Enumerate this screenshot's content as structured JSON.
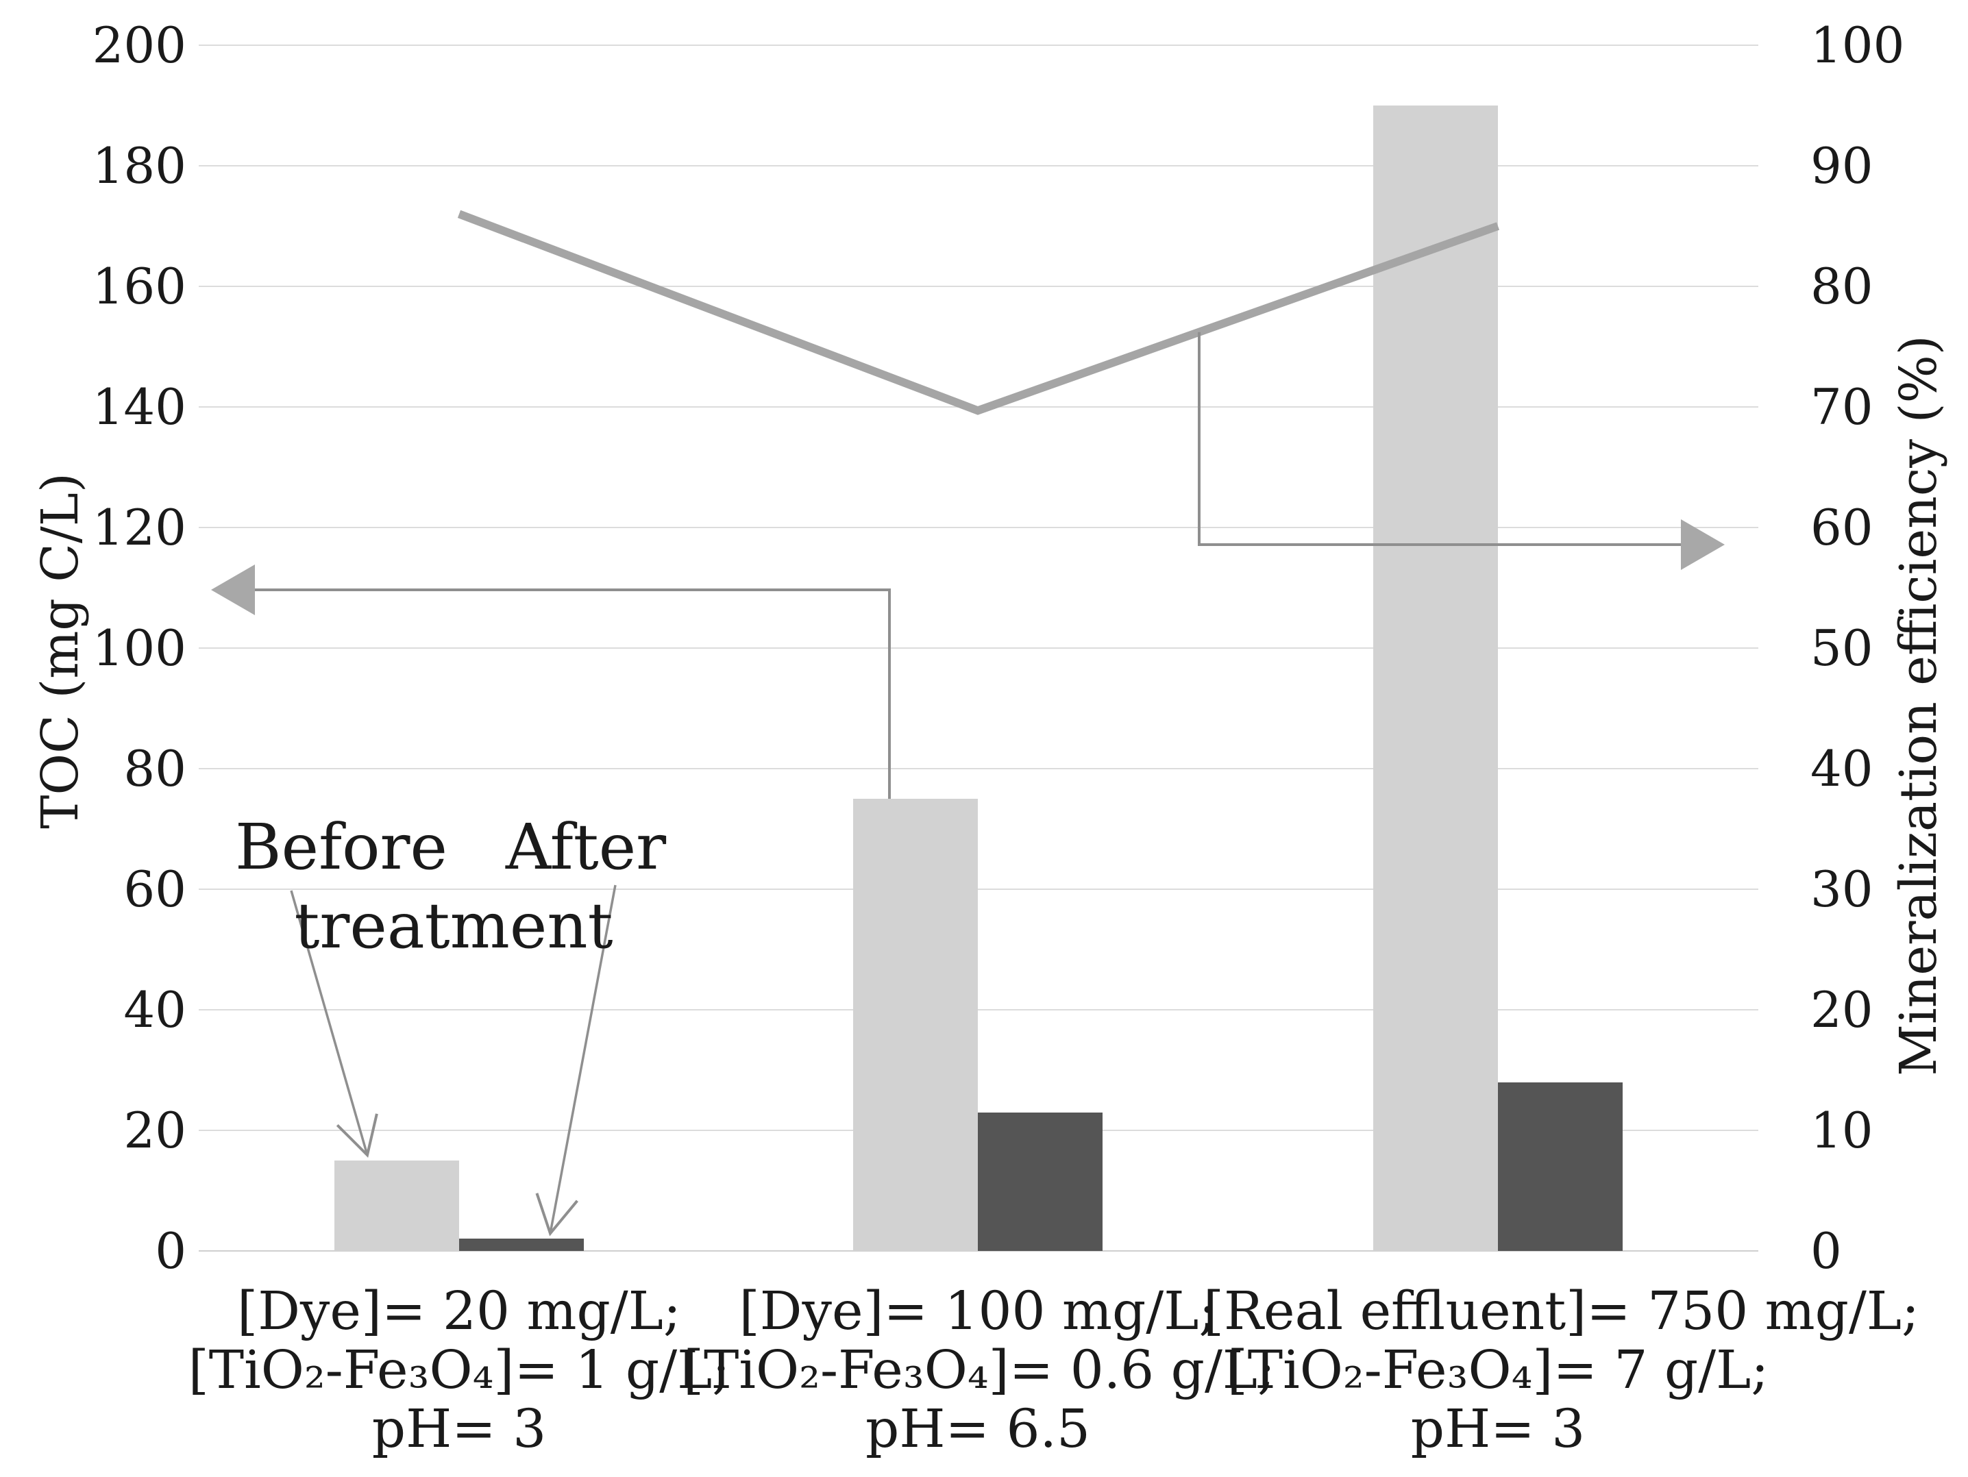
{
  "chart_data": {
    "type": "combo",
    "subtypes": [
      "bar",
      "line"
    ],
    "title": "",
    "legend": false,
    "grid": true,
    "categories": [
      {
        "lines": [
          "[Dye]= 20 mg/L;",
          "[TiO₂-Fe₃O₄]= 1 g/L;",
          "pH= 3"
        ]
      },
      {
        "lines": [
          "[Dye]= 100 mg/L;",
          "[TiO₂-Fe₃O₄]= 0.6 g/L;",
          "pH= 6.5"
        ]
      },
      {
        "lines": [
          "[Real effluent]= 750 mg/L;",
          "[TiO₂-Fe₃O₄]= 7 g/L;",
          "pH= 3"
        ]
      }
    ],
    "series": [
      {
        "name": "TOC before treatment",
        "type": "bar",
        "axis": "left",
        "color": "#d2d2d2",
        "values": [
          15,
          75,
          190
        ]
      },
      {
        "name": "TOC after treatment",
        "type": "bar",
        "axis": "left",
        "color": "#555555",
        "values": [
          2,
          23,
          28
        ]
      },
      {
        "name": "Mineralization efficiency",
        "type": "line",
        "axis": "right",
        "color": "#a5a5a5",
        "values": [
          86,
          69.7,
          85
        ]
      }
    ],
    "left_axis": {
      "title": "TOC (mg C/L)",
      "min": 0,
      "max": 200,
      "step": 20,
      "ticks": [
        "200",
        "180",
        "160",
        "140",
        "120",
        "100",
        "80",
        "60",
        "40",
        "20",
        "0"
      ]
    },
    "right_axis": {
      "title": "Mineralization efficiency (%)",
      "min": 0,
      "max": 100,
      "step": 10,
      "ticks": [
        "100",
        "90",
        "80",
        "70",
        "60",
        "50",
        "40",
        "30",
        "20",
        "10",
        "0"
      ]
    }
  },
  "annotations": {
    "before": "Before",
    "treatment": "treatment",
    "after": "After"
  },
  "colors": {
    "background": "#ffffff",
    "gridline": "#dcdcdc",
    "baseline": "#cfcfcf",
    "bar_before": "#d2d2d2",
    "bar_after": "#555555",
    "efficiency_line": "#a5a5a5",
    "pointer_line": "#8f8f8f",
    "pointer_arrowhead": "#a8a8a8",
    "text": "#1a1a1a"
  }
}
